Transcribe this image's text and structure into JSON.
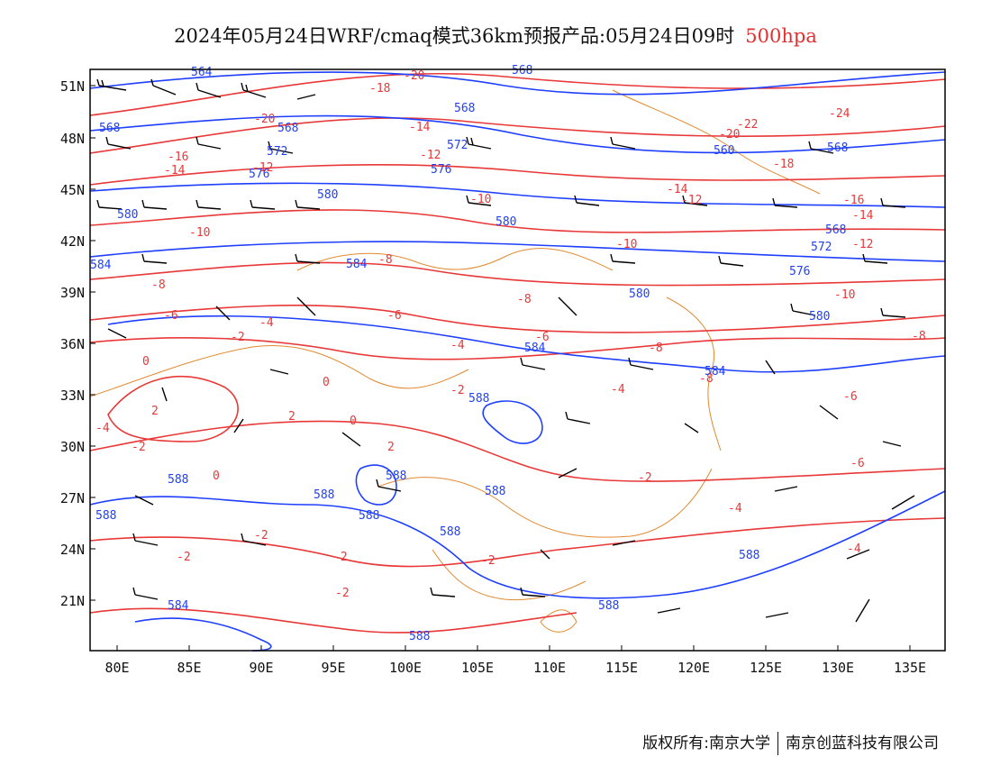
{
  "title": {
    "main": "2024年05月24日WRF/cmaq模式36km预报产品:05月24日09时",
    "level": "500hpa"
  },
  "axes": {
    "lat_labels": [
      "51N",
      "48N",
      "45N",
      "42N",
      "39N",
      "36N",
      "33N",
      "30N",
      "27N",
      "24N",
      "21N"
    ],
    "lon_labels": [
      "80E",
      "85E",
      "90E",
      "95E",
      "100E",
      "105E",
      "110E",
      "115E",
      "120E",
      "125E",
      "130E",
      "135E"
    ]
  },
  "legend_colors": {
    "geopotential_contours": "#1f3fff",
    "temperature_contours": "#e83838",
    "boundaries": "#e08a30",
    "wind_barbs": "#000000"
  },
  "contour_labels": {
    "geopotential": [
      "564",
      "568",
      "572",
      "576",
      "580",
      "584",
      "588"
    ],
    "temperature": [
      "-24",
      "-22",
      "-20",
      "-18",
      "-16",
      "-14",
      "-12",
      "-10",
      "-8",
      "-6",
      "-4",
      "-2",
      "0",
      "2"
    ]
  },
  "copyright": {
    "left": "版权所有:南京大学",
    "right": "南京创蓝科技有限公司"
  }
}
